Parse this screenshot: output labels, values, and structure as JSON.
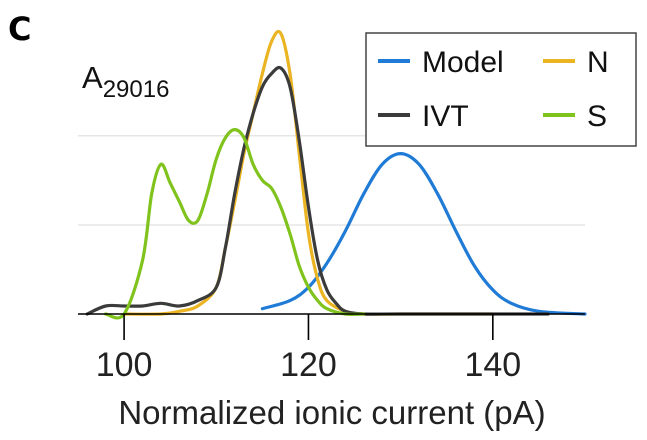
{
  "panel_label": "C",
  "chart_data": {
    "type": "line",
    "annotation": {
      "base": "A",
      "subscript": "29016"
    },
    "xlabel": "Normalized ionic current (pA)",
    "ylabel": "",
    "xlim": [
      95,
      150
    ],
    "ylim": [
      0,
      1.1
    ],
    "x_ticks": [
      100,
      120,
      140
    ],
    "y_gridlines": [
      0.333,
      0.667
    ],
    "grid": "horizontal",
    "legend_position": "top-right",
    "series": [
      {
        "name": "Model",
        "color": "#1f7bd6",
        "x": [
          115,
          118,
          120,
          122,
          124,
          126,
          128,
          130,
          132,
          134,
          136,
          138,
          140,
          142,
          145,
          150
        ],
        "y": [
          0.02,
          0.05,
          0.1,
          0.19,
          0.31,
          0.45,
          0.56,
          0.6,
          0.56,
          0.45,
          0.31,
          0.18,
          0.09,
          0.04,
          0.01,
          0.0
        ]
      },
      {
        "name": "N",
        "color": "#eab422",
        "x": [
          100,
          104,
          106,
          108,
          110,
          111,
          112,
          113,
          114,
          115,
          116,
          117,
          118,
          119,
          120,
          121,
          122,
          124,
          126,
          130,
          140
        ],
        "y": [
          0.0,
          0.0,
          0.01,
          0.03,
          0.1,
          0.25,
          0.42,
          0.6,
          0.75,
          0.9,
          1.02,
          1.05,
          0.9,
          0.6,
          0.3,
          0.13,
          0.05,
          0.01,
          0.0,
          0.0,
          0.0
        ]
      },
      {
        "name": "IVT",
        "color": "#3b3b3b",
        "x": [
          96,
          98,
          100,
          102,
          104,
          106,
          108,
          110,
          111,
          112,
          113,
          114,
          115,
          116,
          117,
          118,
          119,
          120,
          121,
          122,
          123,
          124,
          126,
          130,
          146
        ],
        "y": [
          0.0,
          0.03,
          0.03,
          0.03,
          0.04,
          0.03,
          0.05,
          0.1,
          0.25,
          0.45,
          0.62,
          0.75,
          0.85,
          0.9,
          0.92,
          0.85,
          0.65,
          0.4,
          0.2,
          0.09,
          0.04,
          0.01,
          0.0,
          0.0,
          0.0
        ]
      },
      {
        "name": "S",
        "color": "#7fc31c",
        "x": [
          98,
          100,
          102,
          103,
          104,
          105,
          106,
          107,
          108,
          109,
          110,
          111,
          112,
          113,
          114,
          115,
          116,
          117,
          118,
          119,
          120,
          121,
          122,
          124,
          126
        ],
        "y": [
          0.0,
          0.0,
          0.2,
          0.45,
          0.56,
          0.49,
          0.42,
          0.35,
          0.35,
          0.45,
          0.58,
          0.66,
          0.69,
          0.66,
          0.56,
          0.5,
          0.47,
          0.4,
          0.3,
          0.18,
          0.1,
          0.05,
          0.02,
          0.0,
          0.0
        ]
      }
    ]
  }
}
